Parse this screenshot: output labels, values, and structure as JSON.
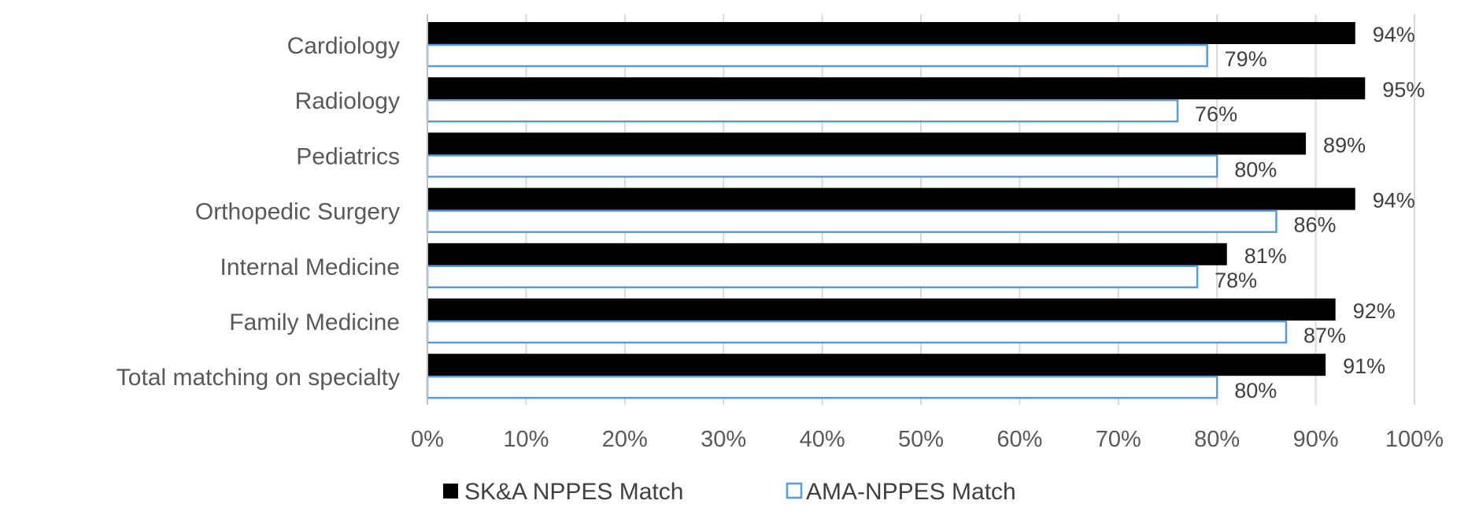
{
  "chart_data": {
    "type": "bar",
    "orientation": "horizontal",
    "categories": [
      "Cardiology",
      "Radiology",
      "Pediatrics",
      "Orthopedic Surgery",
      "Internal Medicine",
      "Family Medicine",
      "Total matching on specialty"
    ],
    "series": [
      {
        "name": "SK&A NPPES Match",
        "values": [
          94,
          95,
          89,
          94,
          81,
          92,
          91
        ],
        "labels": [
          "94%",
          "95%",
          "89%",
          "94%",
          "81%",
          "92%",
          "91%"
        ],
        "color": "#000000",
        "style": "filled"
      },
      {
        "name": "AMA-NPPES Match",
        "values": [
          79,
          76,
          80,
          86,
          78,
          87,
          80
        ],
        "labels": [
          "79%",
          "76%",
          "80%",
          "86%",
          "78%",
          "87%",
          "80%"
        ],
        "color": "#5b9bd5",
        "style": "outline"
      }
    ],
    "xlim": [
      0,
      100
    ],
    "xticks": [
      0,
      10,
      20,
      30,
      40,
      50,
      60,
      70,
      80,
      90,
      100
    ],
    "xtick_labels": [
      "0%",
      "10%",
      "20%",
      "30%",
      "40%",
      "50%",
      "60%",
      "70%",
      "80%",
      "90%",
      "100%"
    ],
    "grid": "vertical",
    "legend": "bottom"
  }
}
